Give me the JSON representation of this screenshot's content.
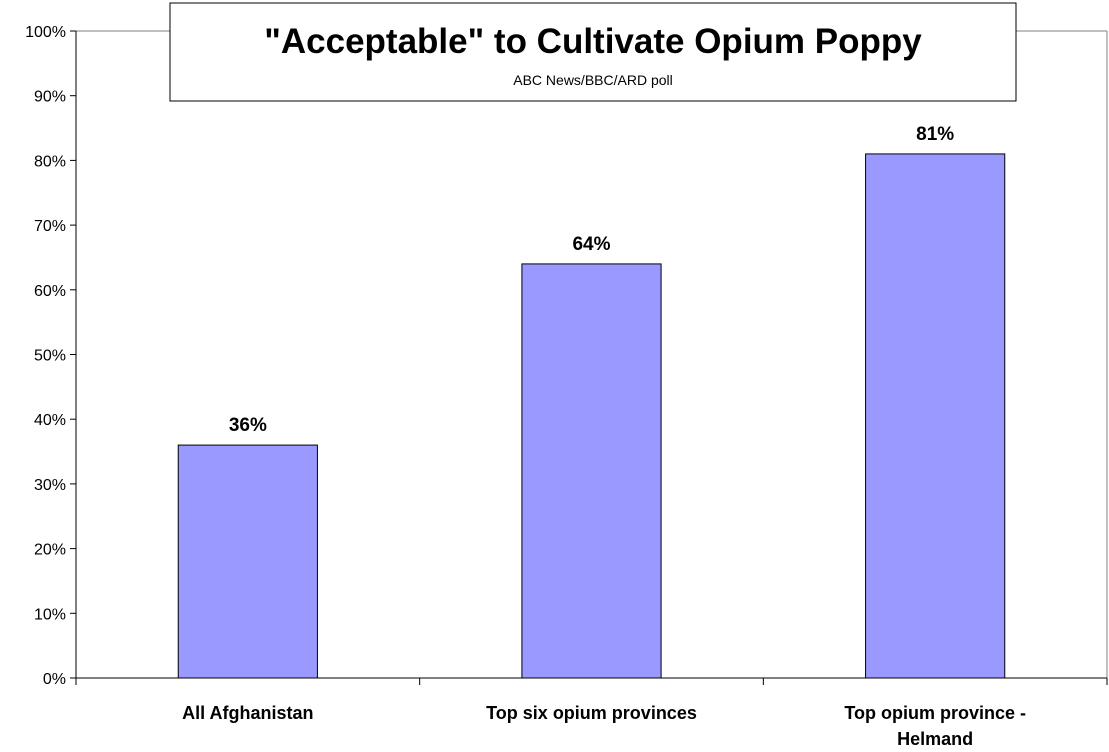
{
  "chart_data": {
    "type": "bar",
    "title": "\"Acceptable\" to Cultivate Opium Poppy",
    "subtitle": "ABC News/BBC/ARD poll",
    "categories": [
      [
        "All Afghanistan"
      ],
      [
        "Top six opium provinces"
      ],
      [
        "Top opium province -",
        "Helmand"
      ]
    ],
    "values": [
      36,
      64,
      81
    ],
    "data_labels": [
      "36%",
      "64%",
      "81%"
    ],
    "ylim": [
      0,
      100
    ],
    "yticks": [
      0,
      10,
      20,
      30,
      40,
      50,
      60,
      70,
      80,
      90,
      100
    ],
    "ytick_labels": [
      "0%",
      "10%",
      "20%",
      "30%",
      "40%",
      "50%",
      "60%",
      "70%",
      "80%",
      "90%",
      "100%"
    ],
    "xlabel": "",
    "ylabel": "",
    "grid": false,
    "legend": "none",
    "bar_color": "#9999ff",
    "bar_edge_color": "#000000"
  }
}
